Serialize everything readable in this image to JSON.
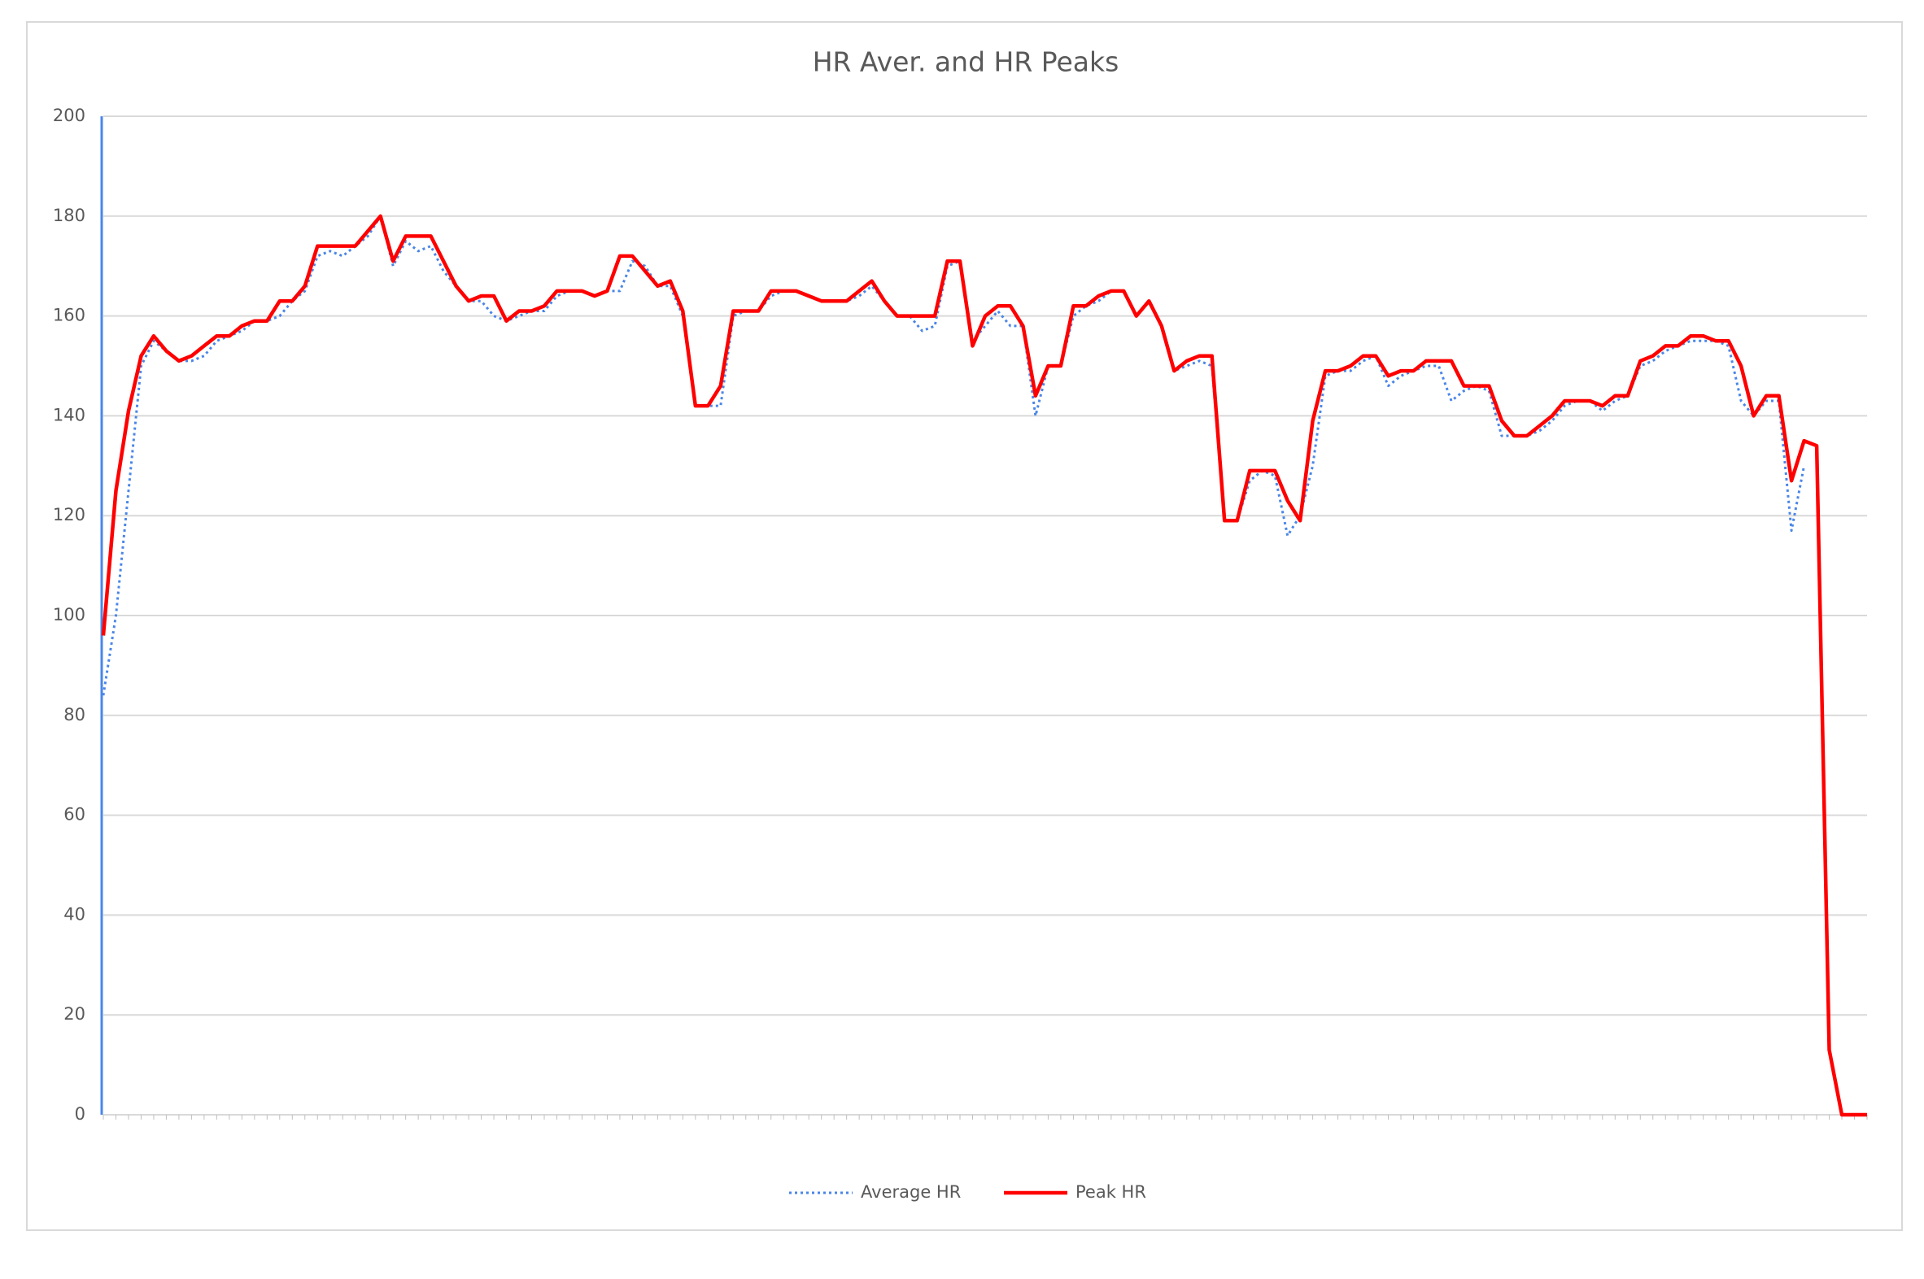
{
  "chart_data": {
    "type": "line",
    "title": "HR Aver. and HR Peaks",
    "categories": [
      null,
      null,
      null,
      null,
      null,
      null,
      null,
      null,
      null,
      null,
      null,
      null,
      null,
      null,
      null,
      null,
      null,
      null,
      null,
      null,
      null,
      null,
      null,
      null,
      null,
      null,
      null,
      null,
      null,
      null,
      null,
      null,
      null,
      null,
      null,
      null,
      null,
      null,
      null,
      null,
      null,
      null,
      null,
      null,
      null,
      null,
      null,
      null,
      null,
      null,
      null,
      null,
      null,
      null,
      null,
      null,
      null,
      null,
      null,
      null,
      null,
      null,
      null,
      null,
      null,
      null,
      null,
      null,
      null,
      null,
      null,
      null,
      null,
      null,
      null,
      null,
      null,
      null,
      null,
      null,
      null,
      null,
      null,
      null,
      null,
      null,
      null,
      null,
      null,
      null,
      null,
      null,
      null,
      null,
      null,
      null,
      null,
      null,
      null,
      null,
      null,
      null,
      null,
      null,
      null,
      null,
      null,
      null,
      null,
      null,
      null,
      null,
      null,
      null,
      null,
      null,
      null,
      null,
      null,
      null,
      null,
      null,
      null,
      null,
      null,
      null,
      null,
      null,
      null,
      null,
      null,
      null,
      null,
      null,
      null,
      null,
      null,
      null,
      null,
      null,
      null
    ],
    "series": [
      {
        "name": "Average HR",
        "color": "#4a86e8",
        "dash": "dotted",
        "values": [
          84,
          100,
          125,
          150,
          155,
          153,
          151,
          151,
          152,
          155,
          156,
          157,
          159,
          159,
          160,
          163,
          165,
          172,
          173,
          172,
          174,
          176,
          180,
          170,
          175,
          173,
          174,
          169,
          166,
          163,
          163,
          160,
          159,
          160,
          161,
          161,
          164,
          165,
          165,
          164,
          165,
          165,
          171,
          170,
          166,
          166,
          160,
          142,
          142,
          142,
          160,
          161,
          161,
          164,
          165,
          165,
          164,
          163,
          163,
          163,
          164,
          166,
          163,
          160,
          160,
          157,
          158,
          170,
          171,
          155,
          158,
          161,
          158,
          158,
          140,
          150,
          150,
          160,
          162,
          163,
          165,
          165,
          160,
          163,
          158,
          149,
          150,
          151,
          150,
          119,
          119,
          127,
          129,
          128,
          116,
          120,
          130,
          148,
          149,
          149,
          151,
          152,
          146,
          148,
          149,
          150,
          150,
          143,
          145,
          146,
          145,
          136,
          136,
          136,
          137,
          139,
          142,
          143,
          143,
          141,
          143,
          144,
          150,
          151,
          153,
          154,
          155,
          155,
          155,
          154,
          143,
          140,
          143,
          143,
          117,
          130,
          null,
          null,
          null,
          null,
          null
        ]
      },
      {
        "name": "Peak HR",
        "color": "#ff0000",
        "dash": "solid",
        "values": [
          96,
          125,
          141,
          152,
          156,
          153,
          151,
          152,
          154,
          156,
          156,
          158,
          159,
          159,
          163,
          163,
          166,
          174,
          174,
          174,
          174,
          177,
          180,
          171,
          176,
          176,
          176,
          171,
          166,
          163,
          164,
          164,
          159,
          161,
          161,
          162,
          165,
          165,
          165,
          164,
          165,
          172,
          172,
          169,
          166,
          167,
          161,
          142,
          142,
          146,
          161,
          161,
          161,
          165,
          165,
          165,
          164,
          163,
          163,
          163,
          165,
          167,
          163,
          160,
          160,
          160,
          160,
          171,
          171,
          154,
          160,
          162,
          162,
          158,
          144,
          150,
          150,
          162,
          162,
          164,
          165,
          165,
          160,
          163,
          158,
          149,
          151,
          152,
          152,
          119,
          119,
          129,
          129,
          129,
          123,
          119,
          139,
          149,
          149,
          150,
          152,
          152,
          148,
          149,
          149,
          151,
          151,
          151,
          146,
          146,
          146,
          139,
          136,
          136,
          138,
          140,
          143,
          143,
          143,
          142,
          144,
          144,
          151,
          152,
          154,
          154,
          156,
          156,
          155,
          155,
          150,
          140,
          144,
          144,
          127,
          135,
          134,
          13,
          0,
          0,
          0
        ]
      }
    ],
    "ylim": [
      0,
      200
    ],
    "yticks": [
      0,
      20,
      40,
      60,
      80,
      100,
      120,
      140,
      160,
      180,
      200
    ],
    "grid": true,
    "legend": "bottom"
  }
}
